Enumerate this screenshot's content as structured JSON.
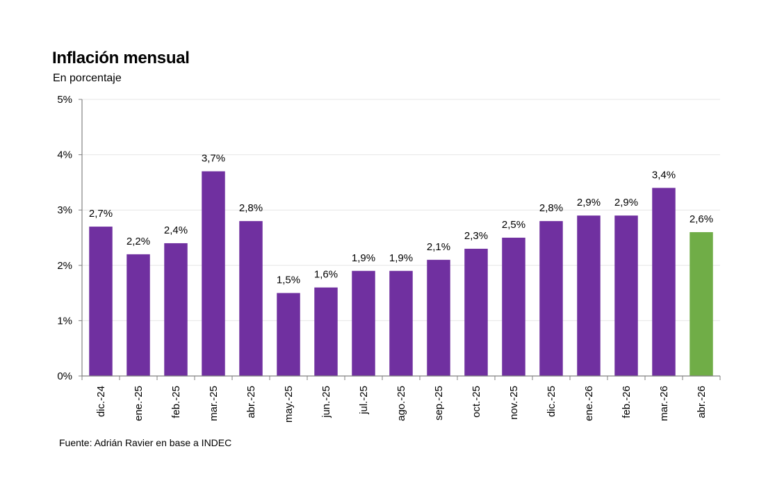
{
  "chart_data": {
    "type": "bar",
    "title": "Inflación mensual",
    "subtitle": "En porcentaje",
    "source": "Fuente: Adrián Ravier en base a INDEC",
    "xlabel": "",
    "ylabel": "",
    "ylim": [
      0,
      5
    ],
    "yticks": [
      0,
      1,
      2,
      3,
      4,
      5
    ],
    "ytick_labels": [
      "0%",
      "1%",
      "2%",
      "3%",
      "4%",
      "5%"
    ],
    "grid": true,
    "legend": "none",
    "categories": [
      "dic.-24",
      "ene.-25",
      "feb.-25",
      "mar.-25",
      "abr.-25",
      "may.-25",
      "jun.-25",
      "jul.-25",
      "ago.-25",
      "sep.-25",
      "oct.-25",
      "nov.-25",
      "dic.-25",
      "ene.-26",
      "feb.-26",
      "mar.-26",
      "abr.-26"
    ],
    "values": [
      2.7,
      2.2,
      2.4,
      3.7,
      2.8,
      1.5,
      1.6,
      1.9,
      1.9,
      2.1,
      2.3,
      2.5,
      2.8,
      2.9,
      2.9,
      3.4,
      2.6
    ],
    "data_labels": [
      "2,7%",
      "2,2%",
      "2,4%",
      "3,7%",
      "2,8%",
      "1,5%",
      "1,6%",
      "1,9%",
      "1,9%",
      "2,1%",
      "2,3%",
      "2,5%",
      "2,8%",
      "2,9%",
      "2,9%",
      "3,4%",
      "2,6%"
    ],
    "colors": {
      "bar": "#7030a0",
      "highlight": "#70ad47",
      "gridline": "#e6e6e6",
      "axis": "#808080"
    },
    "highlight_index": 16
  }
}
